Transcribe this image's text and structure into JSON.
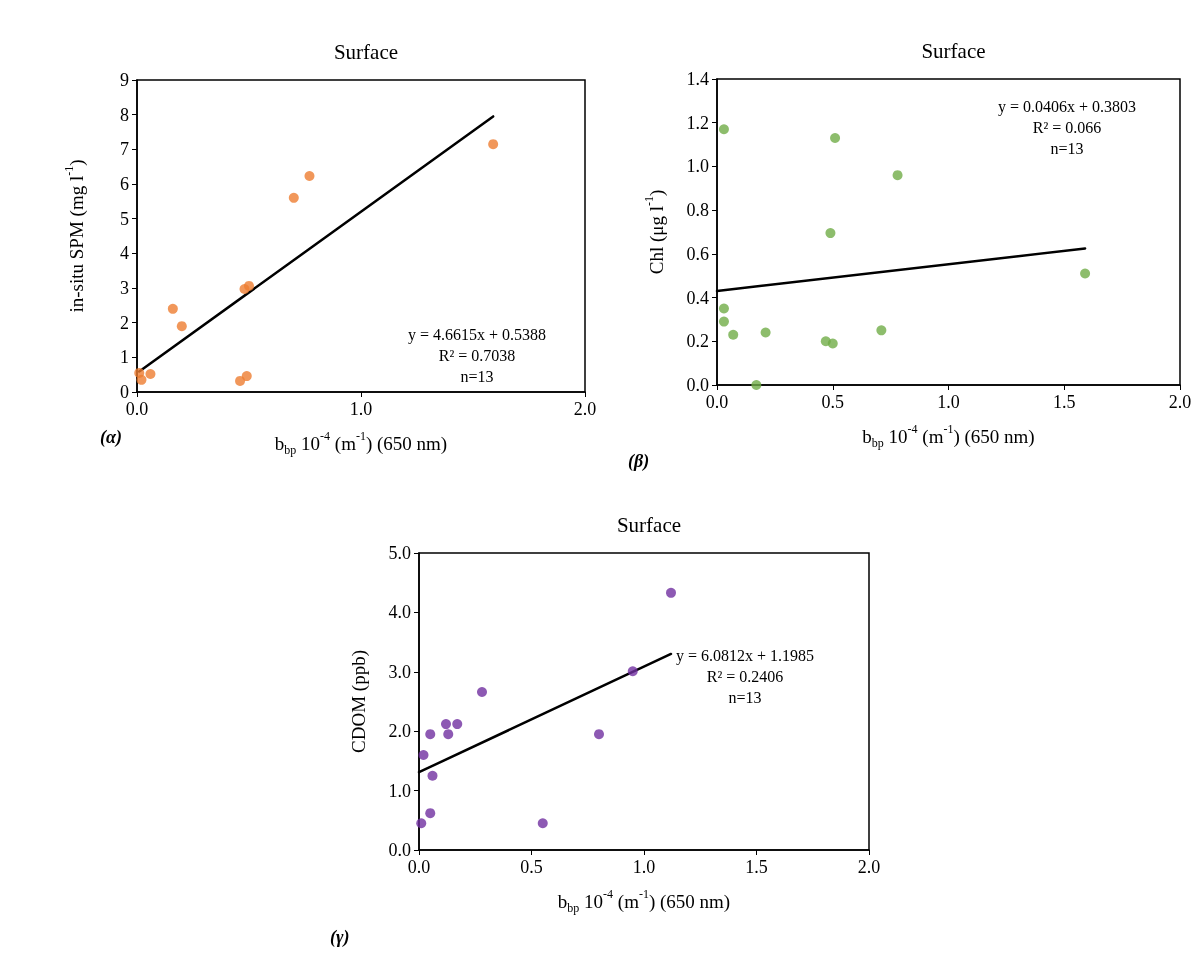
{
  "chart_data": [
    {
      "type": "scatter",
      "title": "Surface",
      "xlabel": "b$_{bp}$ 10$^{-4}$ (m$^{-1}$) (650 nm)",
      "ylabel": "in-situ SPM (mg l$^{-1}$)",
      "marker": "circle",
      "grid": false,
      "xlim": [
        0,
        2
      ],
      "xticks": [
        {
          "value": 0,
          "label": "0.0"
        },
        {
          "value": 1,
          "label": "1.0"
        },
        {
          "value": 2,
          "label": "2.0"
        }
      ],
      "ylim": [
        0,
        9
      ],
      "yticks": [
        0,
        1,
        2,
        3,
        4,
        5,
        6,
        7,
        8,
        9
      ],
      "annotations": [
        "(α)",
        "y = 4.6615x + 0.5388",
        "R² = 0.7038",
        "n=13"
      ],
      "series": [
        {
          "color": "#ed7d31",
          "x": [
            0.01,
            0.02,
            0.06,
            0.16,
            0.2,
            0.46,
            0.49,
            0.48,
            0.5,
            0.7,
            0.77,
            1.59
          ],
          "values": [
            0.55,
            0.35,
            0.52,
            2.4,
            1.9,
            0.32,
            0.46,
            2.97,
            3.06,
            5.6,
            6.23,
            7.15
          ]
        },
        {
          "type": "line",
          "marker": "none",
          "color": "#000000",
          "x": [
            0.01,
            1.59
          ],
          "values": [
            0.59,
            7.95
          ]
        }
      ]
    },
    {
      "type": "scatter",
      "title": "Surface",
      "xlabel": "b$_{bp}$ 10$^{-4}$ (m$^{-1}$) (650 nm)",
      "ylabel": "Chl (μg l$^{-1}$)",
      "marker": "circle",
      "grid": false,
      "xlim": [
        0,
        2
      ],
      "xticks": [
        {
          "value": 0,
          "label": "0.0"
        },
        {
          "value": 0.5,
          "label": "0.5"
        },
        {
          "value": 1,
          "label": "1.0"
        },
        {
          "value": 1.5,
          "label": "1.5"
        },
        {
          "value": 2,
          "label": "2.0"
        }
      ],
      "ylim": [
        0,
        1.4
      ],
      "yticks": [
        {
          "value": 0,
          "label": "0.0"
        },
        {
          "value": 0.2,
          "label": "0.2"
        },
        {
          "value": 0.4,
          "label": "0.4"
        },
        {
          "value": 0.6,
          "label": "0.6"
        },
        {
          "value": 0.8,
          "label": "0.8"
        },
        {
          "value": 1,
          "label": "1.0"
        },
        {
          "value": 1.2,
          "label": "1.2"
        },
        {
          "value": 1.4,
          "label": "1.4"
        }
      ],
      "annotations": [
        "(β)",
        "y = 0.0406x + 0.3803",
        "R² = 0.066",
        "n=13"
      ],
      "series": [
        {
          "color": "#70ad47",
          "x": [
            0.03,
            0.51,
            0.78,
            0.49,
            1.59,
            0.03,
            0.03,
            0.07,
            0.21,
            0.47,
            0.5,
            0.71,
            0.17
          ],
          "values": [
            1.17,
            1.13,
            0.96,
            0.695,
            0.51,
            0.35,
            0.29,
            0.23,
            0.24,
            0.2,
            0.19,
            0.25,
            0.0
          ]
        },
        {
          "type": "line",
          "marker": "none",
          "color": "#000000",
          "x": [
            0,
            1.59
          ],
          "values": [
            0.43,
            0.625
          ]
        }
      ]
    },
    {
      "type": "scatter",
      "title": "Surface",
      "xlabel": "b$_{bp}$ 10$^{-4}$ (m$^{-1}$) (650 nm)",
      "ylabel": "CDOM (ppb)",
      "marker": "circle",
      "grid": false,
      "xlim": [
        0,
        2
      ],
      "xticks": [
        {
          "value": 0,
          "label": "0.0"
        },
        {
          "value": 0.5,
          "label": "0.5"
        },
        {
          "value": 1,
          "label": "1.0"
        },
        {
          "value": 1.5,
          "label": "1.5"
        },
        {
          "value": 2,
          "label": "2.0"
        }
      ],
      "ylim": [
        0,
        5
      ],
      "yticks": [
        {
          "value": 0,
          "label": "0.0"
        },
        {
          "value": 1,
          "label": "1.0"
        },
        {
          "value": 2,
          "label": "2.0"
        },
        {
          "value": 3,
          "label": "3.0"
        },
        {
          "value": 4,
          "label": "4.0"
        },
        {
          "value": 5,
          "label": "5.0"
        }
      ],
      "annotations": [
        "(γ)",
        "y = 6.0812x + 1.1985",
        "R² = 0.2406",
        "n=13"
      ],
      "series": [
        {
          "color": "#7030a0",
          "x": [
            1.12,
            0.95,
            0.28,
            0.12,
            0.17,
            0.05,
            0.13,
            0.8,
            0.02,
            0.06,
            0.05,
            0.01,
            0.55
          ],
          "values": [
            4.33,
            3.01,
            2.66,
            2.12,
            2.12,
            1.95,
            1.95,
            1.95,
            1.6,
            1.25,
            0.62,
            0.45,
            0.45
          ]
        },
        {
          "type": "line",
          "marker": "none",
          "color": "#000000",
          "x": [
            0,
            1.12
          ],
          "values": [
            1.31,
            3.3
          ]
        }
      ]
    }
  ]
}
